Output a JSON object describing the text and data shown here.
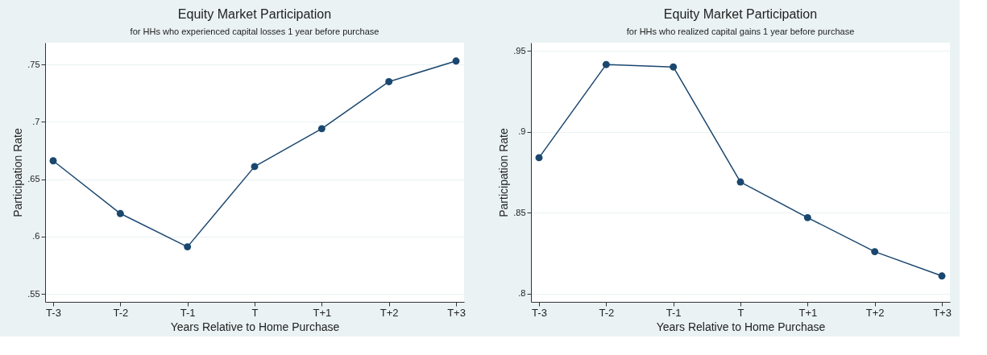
{
  "chart_data": [
    {
      "type": "line",
      "title": "Equity Market Participation",
      "subtitle": "for HHs who experienced capital losses 1 year before purchase",
      "xlabel": "Years Relative to Home Purchase",
      "ylabel": "Participation Rate",
      "categories": [
        "T-3",
        "T-2",
        "T-1",
        "T",
        "T+1",
        "T+2",
        "T+3"
      ],
      "series": [
        {
          "color": "#1a476f",
          "values": [
            0.666,
            0.62,
            0.591,
            0.661,
            0.694,
            0.735,
            0.753
          ]
        }
      ],
      "ylim": [
        0.543,
        0.769
      ],
      "yticks": [
        {
          "value": 0.55,
          "label": ".55"
        },
        {
          "value": 0.6,
          "label": ".6"
        },
        {
          "value": 0.65,
          "label": ".65"
        },
        {
          "value": 0.7,
          "label": ".7"
        },
        {
          "value": 0.75,
          "label": ".75"
        }
      ],
      "grid": "y",
      "marker": "circle",
      "line_style": "solid"
    },
    {
      "type": "line",
      "title": "Equity Market Participation",
      "subtitle": "for HHs who realized capital gains 1 year before purchase",
      "xlabel": "Years Relative to Home Purchase",
      "ylabel": "Participation Rate",
      "categories": [
        "T-3",
        "T-2",
        "T-1",
        "T",
        "T+1",
        "T+2",
        "T+3"
      ],
      "series": [
        {
          "color": "#1a476f",
          "values": [
            0.884,
            0.9415,
            0.94,
            0.869,
            0.847,
            0.826,
            0.811
          ]
        }
      ],
      "ylim": [
        0.795,
        0.955
      ],
      "yticks": [
        {
          "value": 0.8,
          "label": ".8"
        },
        {
          "value": 0.85,
          "label": ".85"
        },
        {
          "value": 0.9,
          "label": ".9"
        },
        {
          "value": 0.95,
          "label": ".95"
        }
      ],
      "grid": "y",
      "marker": "circle",
      "line_style": "solid"
    }
  ]
}
